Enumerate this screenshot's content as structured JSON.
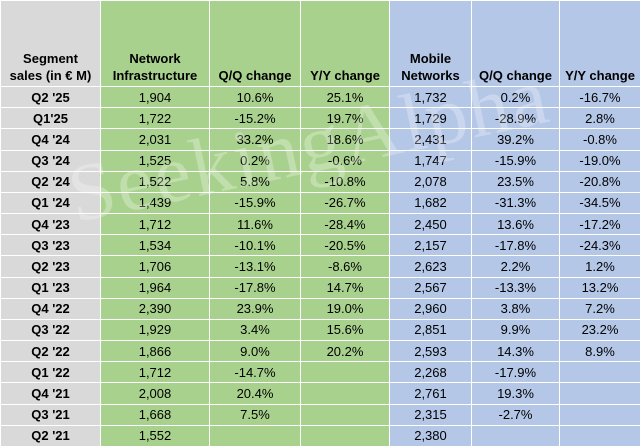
{
  "headers": {
    "segment": "Segment sales (in € M)",
    "ni": "Network Infrastructure",
    "ni_qq": "Q/Q change",
    "ni_yy": "Y/Y change",
    "mn": "Mobile Networks",
    "mn_qq": "Q/Q change",
    "mn_yy": "Y/Y change"
  },
  "colors": {
    "label_col": "#d9d9d9",
    "network_infrastructure": "#a9d18e",
    "mobile_networks": "#b4c7e7"
  },
  "watermark": "SeekingAlpha",
  "rows": [
    {
      "q": "Q2 '25",
      "ni": "1,904",
      "ni_qq": "10.6%",
      "ni_yy": "25.1%",
      "mn": "1,732",
      "mn_qq": "0.2%",
      "mn_yy": "-16.7%"
    },
    {
      "q": "Q1'25",
      "ni": "1,722",
      "ni_qq": "-15.2%",
      "ni_yy": "19.7%",
      "mn": "1,729",
      "mn_qq": "-28.9%",
      "mn_yy": "2.8%"
    },
    {
      "q": "Q4 '24",
      "ni": "2,031",
      "ni_qq": "33.2%",
      "ni_yy": "18.6%",
      "mn": "2,431",
      "mn_qq": "39.2%",
      "mn_yy": "-0.8%"
    },
    {
      "q": "Q3 '24",
      "ni": "1,525",
      "ni_qq": "0.2%",
      "ni_yy": "-0.6%",
      "mn": "1,747",
      "mn_qq": "-15.9%",
      "mn_yy": "-19.0%"
    },
    {
      "q": "Q2 '24",
      "ni": "1,522",
      "ni_qq": "5.8%",
      "ni_yy": "-10.8%",
      "mn": "2,078",
      "mn_qq": "23.5%",
      "mn_yy": "-20.8%"
    },
    {
      "q": "Q1 '24",
      "ni": "1,439",
      "ni_qq": "-15.9%",
      "ni_yy": "-26.7%",
      "mn": "1,682",
      "mn_qq": "-31.3%",
      "mn_yy": "-34.5%"
    },
    {
      "q": "Q4 '23",
      "ni": "1,712",
      "ni_qq": "11.6%",
      "ni_yy": "-28.4%",
      "mn": "2,450",
      "mn_qq": "13.6%",
      "mn_yy": "-17.2%"
    },
    {
      "q": "Q3 '23",
      "ni": "1,534",
      "ni_qq": "-10.1%",
      "ni_yy": "-20.5%",
      "mn": "2,157",
      "mn_qq": "-17.8%",
      "mn_yy": "-24.3%"
    },
    {
      "q": "Q2 '23",
      "ni": "1,706",
      "ni_qq": "-13.1%",
      "ni_yy": "-8.6%",
      "mn": "2,623",
      "mn_qq": "2.2%",
      "mn_yy": "1.2%"
    },
    {
      "q": "Q1 '23",
      "ni": "1,964",
      "ni_qq": "-17.8%",
      "ni_yy": "14.7%",
      "mn": "2,567",
      "mn_qq": "-13.3%",
      "mn_yy": "13.2%"
    },
    {
      "q": "Q4 '22",
      "ni": "2,390",
      "ni_qq": "23.9%",
      "ni_yy": "19.0%",
      "mn": "2,960",
      "mn_qq": "3.8%",
      "mn_yy": "7.2%"
    },
    {
      "q": "Q3 '22",
      "ni": "1,929",
      "ni_qq": "3.4%",
      "ni_yy": "15.6%",
      "mn": "2,851",
      "mn_qq": "9.9%",
      "mn_yy": "23.2%"
    },
    {
      "q": "Q2 '22",
      "ni": "1,866",
      "ni_qq": "9.0%",
      "ni_yy": "20.2%",
      "mn": "2,593",
      "mn_qq": "14.3%",
      "mn_yy": "8.9%"
    },
    {
      "q": "Q1 '22",
      "ni": "1,712",
      "ni_qq": "-14.7%",
      "ni_yy": "",
      "mn": "2,268",
      "mn_qq": "-17.9%",
      "mn_yy": ""
    },
    {
      "q": "Q4 '21",
      "ni": "2,008",
      "ni_qq": "20.4%",
      "ni_yy": "",
      "mn": "2,761",
      "mn_qq": "19.3%",
      "mn_yy": ""
    },
    {
      "q": "Q3 '21",
      "ni": "1,668",
      "ni_qq": "7.5%",
      "ni_yy": "",
      "mn": "2,315",
      "mn_qq": "-2.7%",
      "mn_yy": ""
    },
    {
      "q": "Q2 '21",
      "ni": "1,552",
      "ni_qq": "",
      "ni_yy": "",
      "mn": "2,380",
      "mn_qq": "",
      "mn_yy": ""
    }
  ]
}
